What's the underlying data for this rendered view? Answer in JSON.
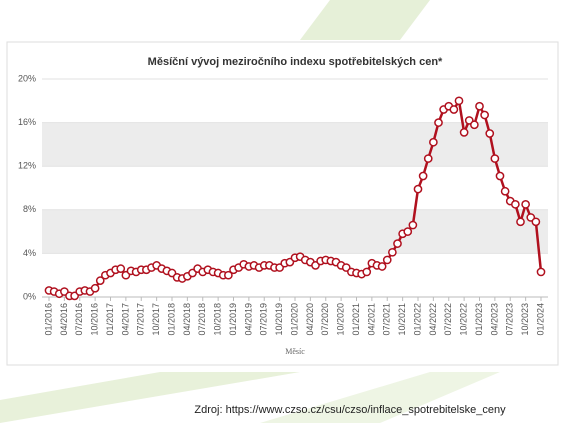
{
  "chart_data": {
    "type": "line",
    "title": "Měsíční vývoj meziročního indexu spotřebitelských cen*",
    "x_label": "Měsíc",
    "categories": [
      "01/2016",
      null,
      null,
      "04/2016",
      null,
      null,
      "07/2016",
      null,
      null,
      "10/2016",
      null,
      null,
      "01/2017",
      null,
      null,
      "04/2017",
      null,
      null,
      "07/2017",
      null,
      null,
      "10/2017",
      null,
      null,
      "01/2018",
      null,
      null,
      "04/2018",
      null,
      null,
      "07/2018",
      null,
      null,
      "10/2018",
      null,
      null,
      "01/2019",
      null,
      null,
      "04/2019",
      null,
      null,
      "07/2019",
      null,
      null,
      "10/2019",
      null,
      null,
      "01/2020",
      null,
      null,
      "04/2020",
      null,
      null,
      "07/2020",
      null,
      null,
      "10/2020",
      null,
      null,
      "01/2021",
      null,
      null,
      "04/2021",
      null,
      null,
      "07/2021",
      null,
      null,
      "10/2021",
      null,
      null,
      "01/2022",
      null,
      null,
      "04/2022",
      null,
      null,
      "07/2022",
      null,
      null,
      "10/2022",
      null,
      null,
      "01/2023",
      null,
      null,
      "04/2023",
      null,
      null,
      "07/2023",
      null,
      null,
      "10/2023",
      null,
      null,
      "01/2024"
    ],
    "values": [
      0.6,
      0.5,
      0.3,
      0.5,
      0.1,
      0.1,
      0.5,
      0.6,
      0.5,
      0.8,
      1.5,
      2.0,
      2.2,
      2.5,
      2.6,
      2.0,
      2.4,
      2.3,
      2.5,
      2.5,
      2.7,
      2.9,
      2.6,
      2.4,
      2.2,
      1.8,
      1.7,
      1.9,
      2.2,
      2.6,
      2.3,
      2.5,
      2.3,
      2.2,
      2.0,
      2.0,
      2.5,
      2.7,
      3.0,
      2.8,
      2.9,
      2.7,
      2.9,
      2.9,
      2.7,
      2.7,
      3.1,
      3.2,
      3.6,
      3.7,
      3.4,
      3.2,
      2.9,
      3.3,
      3.4,
      3.3,
      3.2,
      2.9,
      2.7,
      2.3,
      2.2,
      2.1,
      2.3,
      3.1,
      2.9,
      2.8,
      3.4,
      4.1,
      4.9,
      5.8,
      6.0,
      6.6,
      9.9,
      11.1,
      12.7,
      14.2,
      16.0,
      17.2,
      17.5,
      17.2,
      18.0,
      15.1,
      16.2,
      15.8,
      17.5,
      16.7,
      15.0,
      12.7,
      11.1,
      9.7,
      8.8,
      8.5,
      6.9,
      8.5,
      7.3,
      6.9,
      2.3
    ],
    "color": "#b0101e",
    "ylim": [
      0,
      20
    ],
    "yticks": [
      {
        "value": 0,
        "label": "0%"
      },
      {
        "value": 4,
        "label": "4%"
      },
      {
        "value": 8,
        "label": "8%"
      },
      {
        "value": 12,
        "label": "12%"
      },
      {
        "value": 16,
        "label": "16%"
      },
      {
        "value": 20,
        "label": "20%"
      }
    ],
    "grid": true
  },
  "footer": {
    "source": "Zdroj: https://www.czso.cz/csu/czso/inflace_spotrebitelske_ceny"
  }
}
